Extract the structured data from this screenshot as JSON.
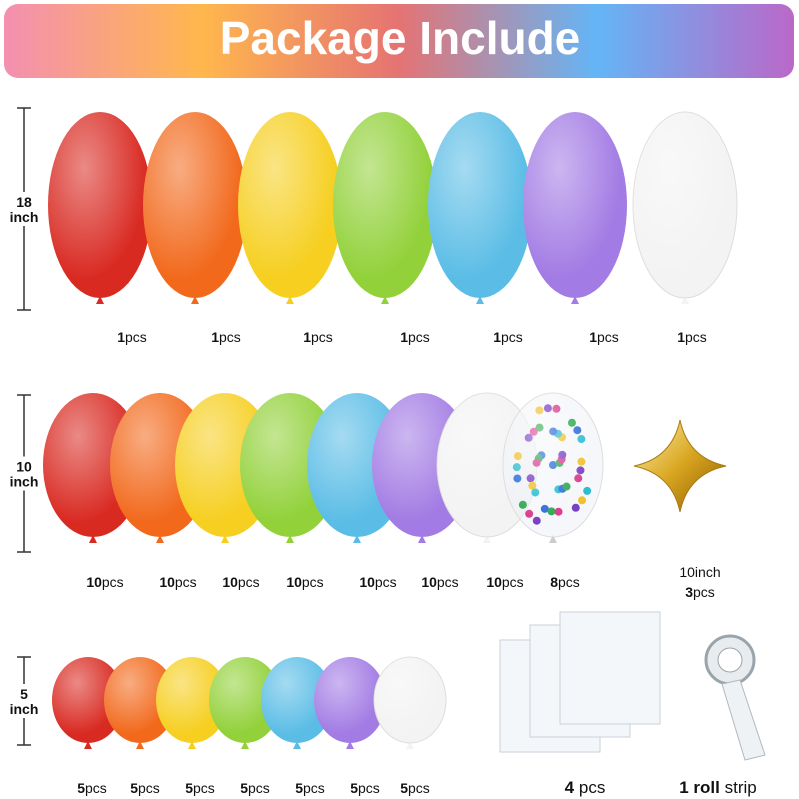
{
  "header": {
    "title": "Package Include"
  },
  "rows": [
    {
      "size": "18",
      "unit": "inch",
      "items": [
        {
          "count": 1,
          "unit": "pcs"
        },
        {
          "count": 1,
          "unit": "pcs"
        },
        {
          "count": 1,
          "unit": "pcs"
        },
        {
          "count": 1,
          "unit": "pcs"
        },
        {
          "count": 1,
          "unit": "pcs"
        },
        {
          "count": 1,
          "unit": "pcs"
        },
        {
          "count": 1,
          "unit": "pcs"
        }
      ]
    },
    {
      "size": "10",
      "unit": "inch",
      "items": [
        {
          "count": 10,
          "unit": "pcs"
        },
        {
          "count": 10,
          "unit": "pcs"
        },
        {
          "count": 10,
          "unit": "pcs"
        },
        {
          "count": 10,
          "unit": "pcs"
        },
        {
          "count": 10,
          "unit": "pcs"
        },
        {
          "count": 10,
          "unit": "pcs"
        },
        {
          "count": 10,
          "unit": "pcs"
        },
        {
          "count": 8,
          "unit": "pcs"
        }
      ],
      "extra": {
        "size": "10inch",
        "count": 3,
        "unit": "pcs"
      }
    },
    {
      "size": "5",
      "unit": "inch",
      "items": [
        {
          "count": 5,
          "unit": "pcs"
        },
        {
          "count": 5,
          "unit": "pcs"
        },
        {
          "count": 5,
          "unit": "pcs"
        },
        {
          "count": 5,
          "unit": "pcs"
        },
        {
          "count": 5,
          "unit": "pcs"
        },
        {
          "count": 5,
          "unit": "pcs"
        },
        {
          "count": 5,
          "unit": "pcs"
        }
      ]
    }
  ],
  "accessories": [
    {
      "count": "4",
      "unit": "pcs"
    },
    {
      "count": "1 roll",
      "unit": "strip"
    }
  ]
}
